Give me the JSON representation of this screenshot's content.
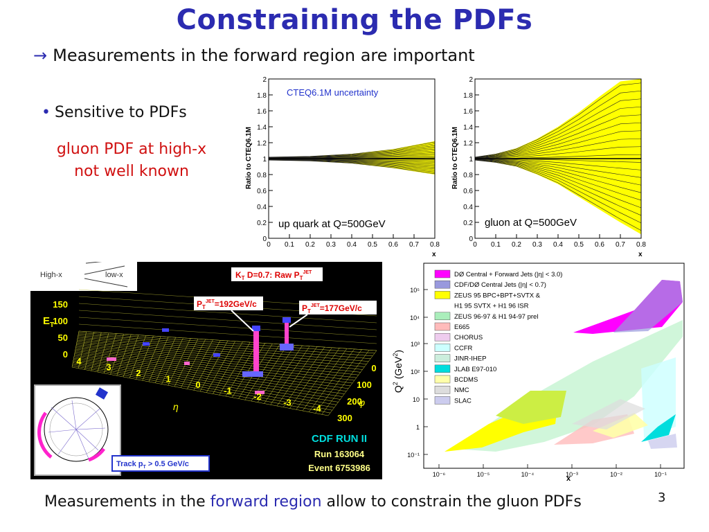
{
  "slide": {
    "title": "Constraining the PDFs",
    "subtitle_arrow": "→",
    "subtitle": "Measurements in the forward region are important",
    "bullet_dot": "•",
    "bullet": "Sensitive to PDFs",
    "note_line1": "gluon PDF at high-x",
    "note_line2": "not well known",
    "bottom_pre": "Measurements in the ",
    "bottom_hl": "forward region",
    "bottom_post": " allow to constrain the gluon PDFs",
    "page_number": "3"
  },
  "chart_data": [
    {
      "type": "area",
      "title": "CTEQ6.1M uncertainty",
      "label": "up quark at Q=500GeV",
      "xlabel": "x",
      "ylabel": "Ratio to CTEQ6.1M",
      "xlim": [
        0,
        0.8
      ],
      "ylim": [
        0,
        2
      ],
      "x_ticks": [
        "0",
        "0.1",
        "0.2",
        "0.3",
        "0.4",
        "0.5",
        "0.6",
        "0.7",
        "0.8"
      ],
      "y_ticks": [
        "0",
        "0.2",
        "0.4",
        "0.6",
        "0.8",
        "1",
        "1.2",
        "1.4",
        "1.6",
        "1.8",
        "2"
      ],
      "band": {
        "x": [
          0,
          0.2,
          0.4,
          0.6,
          0.8
        ],
        "upper": [
          1.02,
          1.03,
          1.06,
          1.12,
          1.22
        ],
        "lower": [
          0.98,
          0.97,
          0.94,
          0.88,
          0.8
        ]
      },
      "band_color": "#ffff00"
    },
    {
      "type": "area",
      "label": "gluon at Q=500GeV",
      "xlabel": "x",
      "ylabel": "Ratio to CTEQ6.1M",
      "xlim": [
        0,
        0.8
      ],
      "ylim": [
        0,
        2
      ],
      "x_ticks": [
        "0",
        "0.1",
        "0.2",
        "0.3",
        "0.4",
        "0.5",
        "0.6",
        "0.7",
        "0.8"
      ],
      "y_ticks": [
        "0",
        "0.2",
        "0.4",
        "0.6",
        "0.8",
        "1",
        "1.2",
        "1.4",
        "1.6",
        "1.8",
        "2"
      ],
      "band": {
        "x": [
          0,
          0.1,
          0.2,
          0.3,
          0.4,
          0.5,
          0.6,
          0.7,
          0.8
        ],
        "upper": [
          1.02,
          1.06,
          1.13,
          1.25,
          1.4,
          1.58,
          1.78,
          1.97,
          2.0
        ],
        "lower": [
          0.98,
          0.95,
          0.9,
          0.8,
          0.68,
          0.52,
          0.36,
          0.2,
          0.05
        ]
      },
      "band_color": "#ffff00"
    }
  ],
  "event_display": {
    "inset_highx": "High-x",
    "inset_lowx": "low-x",
    "header": "K",
    "header_sub": "T",
    "header_rest": " D=0.7: Raw P",
    "header_sub2": "T",
    "header_sup": "JET",
    "jet1_label": "P",
    "jet1_sub": "T",
    "jet1_sup": "JET",
    "jet1_value": "=192GeV/c",
    "jet2_label": "P",
    "jet2_sub": "T",
    "jet2_sup": "JET",
    "jet2_value": "=177GeV/c",
    "z_axis_label": "E",
    "z_axis_sub": "T",
    "z_ticks": [
      "150",
      "100",
      "50",
      "0"
    ],
    "eta_ticks": [
      "4",
      "3",
      "2",
      "1",
      "0",
      "-1",
      "-2",
      "-3",
      "-4"
    ],
    "eta_label": "η",
    "phi_ticks": [
      "0",
      "100",
      "200",
      "300"
    ],
    "phi_label": "φ",
    "experiment": "CDF RUN II",
    "run": "Run 163064",
    "event": "Event 6753986",
    "track_label": "Track p",
    "track_sub": "T",
    "track_value": " > 0.5 GeV/c"
  },
  "kinematic_plane": {
    "ylabel": "Q",
    "ylabel_sup": "2",
    "ylabel_unit": " (GeV",
    "ylabel_unit_sup": "2",
    "ylabel_close": ")",
    "xlabel": "x",
    "y_ticks": [
      "10⁵",
      "10⁴",
      "10³",
      "10²",
      "10",
      "1",
      "10⁻¹"
    ],
    "x_ticks": [
      "10⁻⁶",
      "10⁻⁵",
      "10⁻⁴",
      "10⁻³",
      "10⁻²",
      "10⁻¹"
    ],
    "legend": [
      {
        "label": "DØ Central + Forward Jets (|η| < 3.0)",
        "color": "#ff00ff"
      },
      {
        "label": "CDF/DØ Central Jets (|η| < 0.7)",
        "color": "#9999dd"
      },
      {
        "label": "ZEUS 95 BPC+BPT+SVTX &",
        "color": "#ffff00"
      },
      {
        "label": "H1 95 SVTX + H1 96 ISR",
        "color": ""
      },
      {
        "label": "ZEUS 96-97 & H1 94-97 prel",
        "color": "#aaeebb"
      },
      {
        "label": "E665",
        "color": "#ffbbbb"
      },
      {
        "label": "CHORUS",
        "color": "#eeccee"
      },
      {
        "label": "CCFR",
        "color": "#ccffff"
      },
      {
        "label": "JINR-IHEP",
        "color": "#cceedd"
      },
      {
        "label": "JLAB E97-010",
        "color": "#00dddd"
      },
      {
        "label": "BCDMS",
        "color": "#ffffaa"
      },
      {
        "label": "NMC",
        "color": "#dddddd"
      },
      {
        "label": "SLAC",
        "color": "#ccccee"
      }
    ]
  }
}
